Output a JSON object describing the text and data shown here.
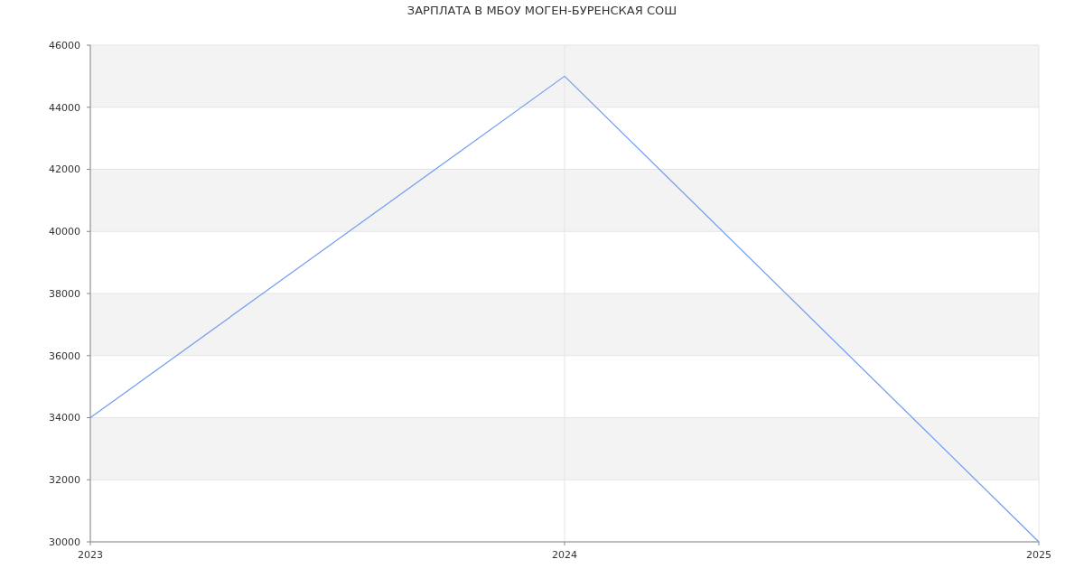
{
  "chart_data": {
    "type": "line",
    "title": "ЗАРПЛАТА В МБОУ МОГЕН-БУРЕНСКАЯ СОШ",
    "x": [
      2023,
      2024,
      2025
    ],
    "series": [
      {
        "color": "#6f9cf0",
        "values": [
          34000,
          45000,
          30000
        ]
      }
    ],
    "xlim": [
      2023,
      2025
    ],
    "xticks": [
      2023,
      2024,
      2025
    ],
    "ylim": [
      30000,
      46000
    ],
    "yticks": [
      30000,
      32000,
      34000,
      36000,
      38000,
      40000,
      42000,
      44000,
      46000
    ],
    "grid": true,
    "marker": "none",
    "line_style": "solid"
  }
}
